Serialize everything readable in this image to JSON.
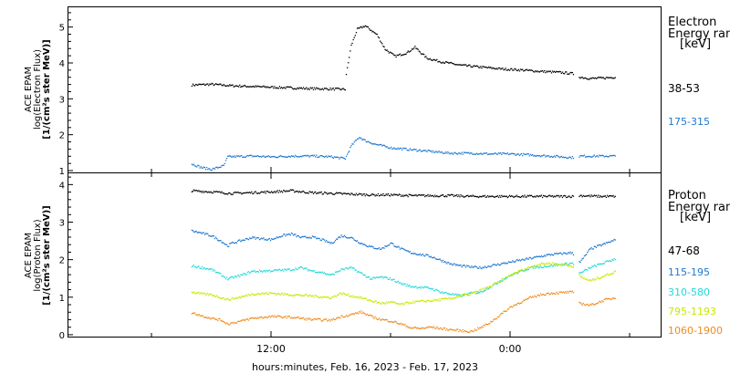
{
  "xlabel": "hours:minutes, Feb. 16, 2023 - Feb. 17, 2023",
  "x_ticks": [
    "12:00",
    "0:00"
  ],
  "colors": {
    "black": "#000000",
    "blue": "#1f78d0",
    "cyan": "#22d8d8",
    "yellow": "#c8e800",
    "orange": "#f08a1a"
  },
  "chart_data": [
    {
      "type": "scatter",
      "ylabel": [
        "ACE EPAM",
        "log(Electron Flux)",
        "[1/(cm²s ster MeV)]"
      ],
      "ylim": [
        0.95,
        5.55
      ],
      "y_ticks": [
        "1",
        "2",
        "3",
        "4",
        "5"
      ],
      "legend": {
        "title": [
          "Electron",
          "Energy ran",
          "[keV]"
        ],
        "placement": "right"
      },
      "series": [
        {
          "name": "38-53",
          "color": "black",
          "gaps": [
            [
              15.2,
              15.45
            ]
          ],
          "points": [
            [
              -4,
              3.4
            ],
            [
              -3,
              3.42
            ],
            [
              -2,
              3.38
            ],
            [
              -1,
              3.36
            ],
            [
              0,
              3.34
            ],
            [
              1,
              3.32
            ],
            [
              2,
              3.3
            ],
            [
              3,
              3.29
            ],
            [
              3.7,
              3.28
            ],
            [
              3.75,
              3.7
            ],
            [
              4,
              4.5
            ],
            [
              4.3,
              4.95
            ],
            [
              4.7,
              5.05
            ],
            [
              5.3,
              4.8
            ],
            [
              5.7,
              4.4
            ],
            [
              6.2,
              4.2
            ],
            [
              6.8,
              4.3
            ],
            [
              7.2,
              4.45
            ],
            [
              7.8,
              4.15
            ],
            [
              8.5,
              4.05
            ],
            [
              9.5,
              3.95
            ],
            [
              10.5,
              3.9
            ],
            [
              11.5,
              3.85
            ],
            [
              12.5,
              3.82
            ],
            [
              13.5,
              3.78
            ],
            [
              14.5,
              3.75
            ],
            [
              15.1,
              3.72
            ],
            [
              15.5,
              3.62
            ],
            [
              16,
              3.58
            ],
            [
              16.8,
              3.6
            ],
            [
              17.3,
              3.62
            ]
          ]
        },
        {
          "name": "175-315",
          "color": "blue",
          "gaps": [
            [
              15.2,
              15.45
            ]
          ],
          "points": [
            [
              -4,
              1.2
            ],
            [
              -3.5,
              1.1
            ],
            [
              -3,
              1.05
            ],
            [
              -2.4,
              1.15
            ],
            [
              -2.2,
              1.4
            ],
            [
              -1,
              1.42
            ],
            [
              0,
              1.4
            ],
            [
              1,
              1.42
            ],
            [
              2,
              1.42
            ],
            [
              3,
              1.4
            ],
            [
              3.7,
              1.35
            ],
            [
              4,
              1.7
            ],
            [
              4.4,
              1.95
            ],
            [
              4.7,
              1.85
            ],
            [
              5.2,
              1.75
            ],
            [
              6,
              1.65
            ],
            [
              7,
              1.6
            ],
            [
              8,
              1.55
            ],
            [
              9,
              1.5
            ],
            [
              10,
              1.5
            ],
            [
              11,
              1.48
            ],
            [
              12,
              1.48
            ],
            [
              13,
              1.45
            ],
            [
              14,
              1.42
            ],
            [
              15.1,
              1.38
            ],
            [
              15.5,
              1.42
            ],
            [
              16.5,
              1.42
            ],
            [
              17.3,
              1.42
            ]
          ]
        }
      ]
    },
    {
      "type": "scatter",
      "ylabel": [
        "ACE EPAM",
        "log(Proton Flux)",
        "[1/(cm²s ster MeV)]"
      ],
      "ylim": [
        -0.05,
        4.3
      ],
      "y_ticks": [
        "0",
        "1",
        "2",
        "3",
        "4"
      ],
      "legend": {
        "title": [
          "Proton",
          "Energy ran",
          "[keV]"
        ],
        "placement": "right"
      },
      "series": [
        {
          "name": "47-68",
          "color": "black",
          "gaps": [
            [
              15.2,
              15.45
            ]
          ],
          "points": [
            [
              -4,
              3.85
            ],
            [
              -3,
              3.82
            ],
            [
              -2,
              3.78
            ],
            [
              -1,
              3.8
            ],
            [
              0,
              3.82
            ],
            [
              1,
              3.85
            ],
            [
              2,
              3.8
            ],
            [
              3,
              3.78
            ],
            [
              4,
              3.76
            ],
            [
              5,
              3.74
            ],
            [
              6,
              3.74
            ],
            [
              7,
              3.72
            ],
            [
              8,
              3.72
            ],
            [
              9,
              3.72
            ],
            [
              10,
              3.7
            ],
            [
              11,
              3.7
            ],
            [
              12,
              3.7
            ],
            [
              13,
              3.7
            ],
            [
              14,
              3.7
            ],
            [
              15.1,
              3.7
            ],
            [
              15.5,
              3.72
            ],
            [
              16.5,
              3.7
            ],
            [
              17.3,
              3.7
            ]
          ]
        },
        {
          "name": "115-195",
          "color": "blue",
          "gaps": [
            [
              15.2,
              15.45
            ]
          ],
          "points": [
            [
              -4,
              2.78
            ],
            [
              -3.5,
              2.72
            ],
            [
              -3,
              2.65
            ],
            [
              -2.5,
              2.5
            ],
            [
              -2.2,
              2.38
            ],
            [
              -2,
              2.45
            ],
            [
              -1,
              2.6
            ],
            [
              0,
              2.55
            ],
            [
              0.5,
              2.65
            ],
            [
              1,
              2.7
            ],
            [
              1.5,
              2.6
            ],
            [
              2,
              2.62
            ],
            [
              2.5,
              2.55
            ],
            [
              3,
              2.45
            ],
            [
              3.5,
              2.65
            ],
            [
              4,
              2.6
            ],
            [
              4.5,
              2.45
            ],
            [
              5,
              2.35
            ],
            [
              5.5,
              2.3
            ],
            [
              6,
              2.45
            ],
            [
              6.5,
              2.3
            ],
            [
              7,
              2.2
            ],
            [
              7.5,
              2.15
            ],
            [
              8,
              2.1
            ],
            [
              8.5,
              2.0
            ],
            [
              9,
              1.9
            ],
            [
              9.5,
              1.85
            ],
            [
              10,
              1.82
            ],
            [
              10.5,
              1.8
            ],
            [
              11,
              1.85
            ],
            [
              11.5,
              1.9
            ],
            [
              12,
              1.95
            ],
            [
              13,
              2.05
            ],
            [
              14,
              2.15
            ],
            [
              15.1,
              2.2
            ],
            [
              15.5,
              1.95
            ],
            [
              16,
              2.3
            ],
            [
              16.8,
              2.45
            ],
            [
              17.3,
              2.55
            ]
          ]
        },
        {
          "name": "310-580",
          "color": "cyan",
          "gaps": [
            [
              15.2,
              15.45
            ]
          ],
          "points": [
            [
              -4,
              1.85
            ],
            [
              -3.5,
              1.8
            ],
            [
              -3,
              1.75
            ],
            [
              -2.5,
              1.6
            ],
            [
              -2.2,
              1.5
            ],
            [
              -1.5,
              1.6
            ],
            [
              -1,
              1.7
            ],
            [
              0,
              1.72
            ],
            [
              1,
              1.75
            ],
            [
              1.5,
              1.8
            ],
            [
              2,
              1.72
            ],
            [
              2.5,
              1.68
            ],
            [
              3,
              1.6
            ],
            [
              3.5,
              1.75
            ],
            [
              4,
              1.8
            ],
            [
              4.5,
              1.65
            ],
            [
              5,
              1.5
            ],
            [
              5.5,
              1.55
            ],
            [
              6,
              1.5
            ],
            [
              6.5,
              1.38
            ],
            [
              7,
              1.3
            ],
            [
              7.5,
              1.28
            ],
            [
              8,
              1.25
            ],
            [
              8.5,
              1.15
            ],
            [
              9,
              1.1
            ],
            [
              9.5,
              1.05
            ],
            [
              10,
              1.12
            ],
            [
              10.5,
              1.15
            ],
            [
              11,
              1.3
            ],
            [
              11.5,
              1.45
            ],
            [
              12,
              1.6
            ],
            [
              12.5,
              1.7
            ],
            [
              13,
              1.8
            ],
            [
              14,
              1.85
            ],
            [
              15.1,
              1.92
            ],
            [
              15.5,
              1.65
            ],
            [
              16,
              1.8
            ],
            [
              16.8,
              1.95
            ],
            [
              17.3,
              2.05
            ]
          ]
        },
        {
          "name": "795-1193",
          "color": "yellow",
          "gaps": [
            [
              15.2,
              15.45
            ]
          ],
          "points": [
            [
              -4,
              1.15
            ],
            [
              -3.5,
              1.1
            ],
            [
              -3,
              1.08
            ],
            [
              -2.5,
              1.0
            ],
            [
              -2.2,
              0.95
            ],
            [
              -1.5,
              1.02
            ],
            [
              -1,
              1.1
            ],
            [
              0,
              1.12
            ],
            [
              1,
              1.08
            ],
            [
              2,
              1.05
            ],
            [
              3,
              1.0
            ],
            [
              3.5,
              1.12
            ],
            [
              4,
              1.05
            ],
            [
              4.5,
              1.0
            ],
            [
              5,
              0.92
            ],
            [
              5.5,
              0.85
            ],
            [
              6,
              0.88
            ],
            [
              6.5,
              0.82
            ],
            [
              7,
              0.88
            ],
            [
              7.5,
              0.9
            ],
            [
              8,
              0.92
            ],
            [
              8.5,
              0.95
            ],
            [
              9,
              0.98
            ],
            [
              9.5,
              1.05
            ],
            [
              10,
              1.1
            ],
            [
              10.5,
              1.2
            ],
            [
              11,
              1.3
            ],
            [
              11.5,
              1.45
            ],
            [
              12,
              1.6
            ],
            [
              12.5,
              1.72
            ],
            [
              13,
              1.82
            ],
            [
              13.5,
              1.9
            ],
            [
              14,
              1.92
            ],
            [
              15.1,
              1.85
            ],
            [
              15.5,
              1.55
            ],
            [
              16,
              1.45
            ],
            [
              16.8,
              1.6
            ],
            [
              17.3,
              1.7
            ]
          ]
        },
        {
          "name": "1060-1900",
          "color": "orange",
          "gaps": [
            [
              15.2,
              15.45
            ]
          ],
          "points": [
            [
              -4,
              0.6
            ],
            [
              -3.5,
              0.52
            ],
            [
              -3,
              0.45
            ],
            [
              -2.5,
              0.4
            ],
            [
              -2.2,
              0.3
            ],
            [
              -1.5,
              0.38
            ],
            [
              -1,
              0.45
            ],
            [
              0,
              0.5
            ],
            [
              1,
              0.48
            ],
            [
              2,
              0.42
            ],
            [
              3,
              0.4
            ],
            [
              3.5,
              0.5
            ],
            [
              4,
              0.55
            ],
            [
              4.5,
              0.62
            ],
            [
              5,
              0.5
            ],
            [
              5.5,
              0.42
            ],
            [
              6,
              0.38
            ],
            [
              6.5,
              0.3
            ],
            [
              7,
              0.2
            ],
            [
              7.5,
              0.18
            ],
            [
              8,
              0.22
            ],
            [
              8.5,
              0.18
            ],
            [
              9,
              0.15
            ],
            [
              9.5,
              0.12
            ],
            [
              10,
              0.1
            ],
            [
              10.5,
              0.2
            ],
            [
              11,
              0.35
            ],
            [
              11.5,
              0.55
            ],
            [
              12,
              0.75
            ],
            [
              12.5,
              0.88
            ],
            [
              13,
              1.0
            ],
            [
              13.5,
              1.08
            ],
            [
              14,
              1.12
            ],
            [
              15.1,
              1.15
            ],
            [
              15.5,
              0.85
            ],
            [
              16,
              0.8
            ],
            [
              16.8,
              0.95
            ],
            [
              17.3,
              1.0
            ]
          ]
        }
      ]
    }
  ]
}
